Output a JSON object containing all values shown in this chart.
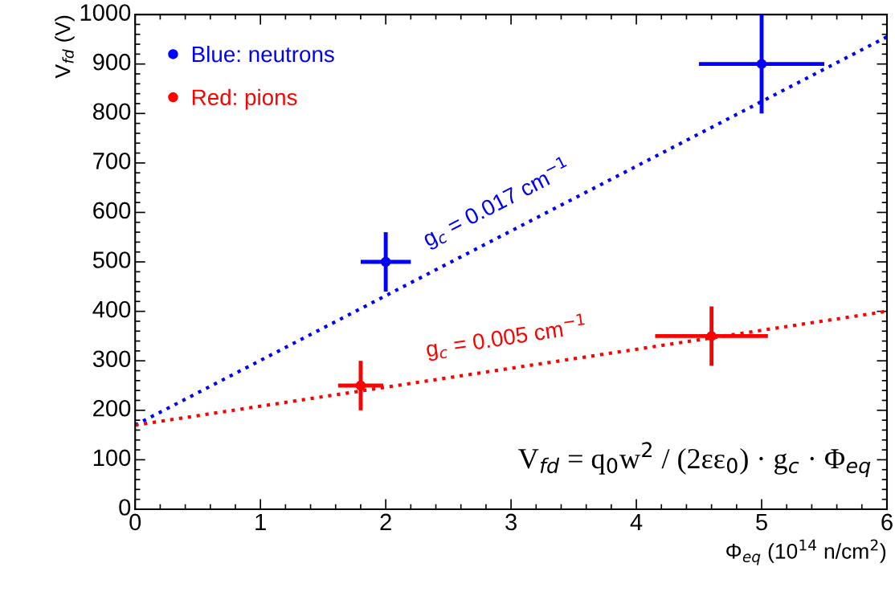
{
  "chart_data": {
    "type": "scatter",
    "xlabel": "Φ$_{eq}$ (10$^{14}$ n/cm$^{2}$)",
    "ylabel": "V$_{fd}$ (V)",
    "xlim": [
      0,
      6
    ],
    "xticks": [
      0,
      1,
      2,
      3,
      4,
      5,
      6
    ],
    "ylim": [
      0,
      1000
    ],
    "yticks": [
      0,
      100,
      200,
      300,
      400,
      500,
      600,
      700,
      800,
      900,
      1000
    ],
    "grid": false,
    "legend": "top left",
    "series": [
      {
        "name": "Blue: neutrons",
        "color": "#0000ff",
        "marker": "circle",
        "x": [
          2,
          5
        ],
        "values": [
          500,
          900
        ],
        "errors": [
          60,
          100
        ],
        "xerrors": [
          0.2,
          0.5
        ]
      },
      {
        "name": "Red: pions",
        "color": "#ff0000",
        "marker": "circle",
        "x": [
          1.8,
          4.6
        ],
        "values": [
          250,
          350
        ],
        "errors": [
          50,
          60
        ],
        "xerrors": [
          0.18,
          0.45
        ]
      },
      {
        "type": "line",
        "name": "g$_{c}$ = 0.017 cm$^{−1}$",
        "color": "#0000ff",
        "line_style": "dotted",
        "x": [
          0,
          6
        ],
        "values": [
          170,
          955
        ]
      },
      {
        "type": "line",
        "name": "g$_{c}$ = 0.005 cm$^{−1}$",
        "color": "#ff0000",
        "line_style": "dotted",
        "x": [
          0,
          6
        ],
        "values": [
          170,
          400
        ]
      }
    ],
    "annotations": [
      "V$_{fd}$ = q$_{0}$w$^{2}$ / (2εε$_{0}$) · g$_{c}$ · Φ$_{eq}$"
    ]
  }
}
